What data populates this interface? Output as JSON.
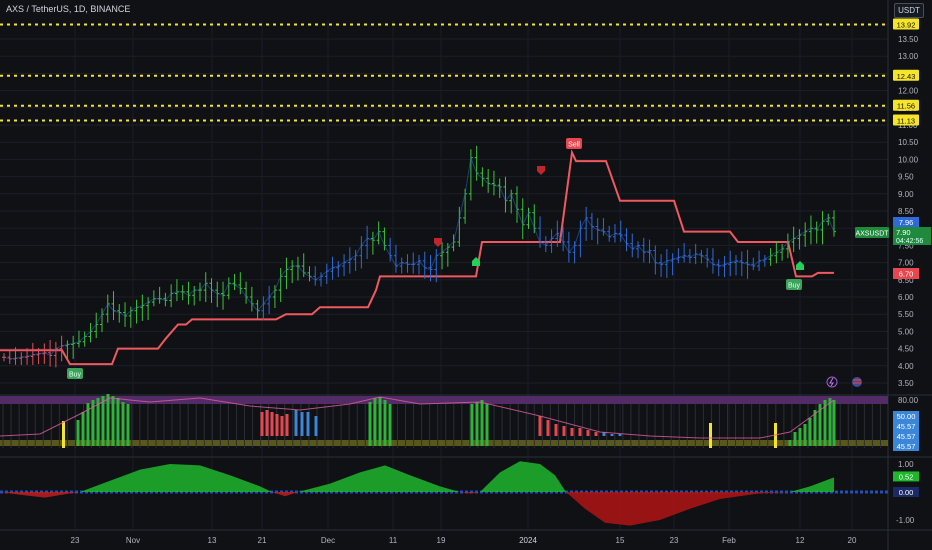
{
  "header": {
    "title": "AXS / TetherUS, 1D, BINANCE",
    "currency_button": "USDT"
  },
  "chart_data": {
    "type": "candlestick",
    "symbol": "AXSUSDT",
    "last_price": "7.90",
    "open_price": "7.96",
    "countdown": "04:42:56",
    "stop_value": "6.70",
    "price_axis": {
      "ticks": [
        "13.50",
        "13.00",
        "12.50",
        "12.00",
        "11.50",
        "11.00",
        "10.50",
        "10.00",
        "9.50",
        "9.00",
        "8.50",
        "8.00",
        "7.50",
        "7.00",
        "6.50",
        "6.00",
        "5.50",
        "5.00",
        "4.50",
        "4.00",
        "3.50"
      ],
      "ylim": [
        3.3,
        14.1
      ]
    },
    "x_axis": {
      "ticks": [
        "23",
        "Nov",
        "13",
        "21",
        "Dec",
        "11",
        "19",
        "2024",
        "15",
        "23",
        "Feb",
        "12",
        "20"
      ]
    },
    "resistance_levels": [
      "13.92",
      "12.43",
      "11.56",
      "11.13"
    ],
    "signals": {
      "buy": [
        "Buy",
        "Buy"
      ],
      "sell": [
        "Sell"
      ]
    },
    "oscillator": {
      "labels": [
        "80.00",
        "50.00",
        "45.57",
        "45.57",
        "45.57"
      ]
    },
    "momentum": {
      "ticks": [
        "1.00",
        "-1.00"
      ],
      "value": "0.52",
      "zero": "0.00",
      "ylim": [
        -1.2,
        1.2
      ]
    },
    "closes": [
      4.25,
      4.2,
      4.22,
      4.25,
      4.27,
      4.32,
      4.35,
      4.38,
      4.3,
      4.5,
      4.58,
      4.62,
      4.65,
      4.7,
      4.85,
      5.0,
      5.2,
      5.5,
      5.8,
      5.6,
      5.55,
      5.45,
      5.6,
      5.7,
      5.75,
      5.85,
      5.95,
      5.95,
      5.9,
      6.1,
      6.15,
      6.15,
      6.05,
      6.2,
      6.2,
      6.4,
      6.2,
      6.1,
      6.05,
      6.4,
      6.35,
      6.25,
      6.0,
      5.8,
      5.6,
      5.8,
      6.0,
      6.2,
      6.6,
      6.8,
      6.9,
      6.9,
      6.7,
      6.6,
      6.5,
      6.6,
      6.75,
      6.85,
      6.9,
      7.0,
      7.1,
      7.2,
      7.5,
      7.7,
      7.65,
      7.9,
      7.5,
      7.2,
      6.9,
      7.0,
      6.95,
      6.95,
      7.05,
      6.85,
      6.8,
      7.2,
      7.3,
      7.45,
      7.6,
      8.3,
      9.0,
      10.05,
      9.6,
      9.45,
      9.3,
      9.25,
      9.2,
      8.8,
      9.0,
      8.55,
      8.1,
      8.45,
      8.0,
      7.6,
      7.5,
      7.7,
      7.85,
      7.6,
      7.3,
      7.5,
      8.0,
      8.3,
      8.05,
      7.95,
      7.9,
      7.75,
      7.85,
      7.8,
      7.55,
      7.4,
      7.5,
      7.3,
      7.35,
      7.0,
      6.95,
      7.05,
      7.1,
      7.15,
      7.2,
      7.15,
      7.25,
      7.2,
      7.1,
      6.95,
      6.9,
      6.95,
      7.0,
      7.05,
      7.0,
      6.95,
      6.9,
      7.05,
      7.1,
      7.2,
      7.3,
      7.4,
      7.6,
      7.7,
      7.8,
      7.9,
      8.0,
      7.95,
      8.2,
      8.3,
      7.9
    ],
    "stop_line": [
      [
        0,
        4.45
      ],
      [
        62,
        4.45
      ],
      [
        70,
        4.05
      ],
      [
        112,
        4.05
      ],
      [
        118,
        4.5
      ],
      [
        158,
        4.5
      ],
      [
        166,
        4.8
      ],
      [
        178,
        5.2
      ],
      [
        186,
        5.2
      ],
      [
        192,
        5.35
      ],
      [
        276,
        5.35
      ],
      [
        286,
        5.5
      ],
      [
        312,
        5.5
      ],
      [
        320,
        5.7
      ],
      [
        368,
        5.7
      ],
      [
        376,
        6.2
      ],
      [
        380,
        6.6
      ],
      [
        476,
        6.6
      ],
      [
        482,
        7.6
      ],
      [
        560,
        7.6
      ],
      [
        572,
        10.2
      ],
      [
        576,
        9.95
      ],
      [
        606,
        9.95
      ],
      [
        620,
        8.8
      ],
      [
        674,
        8.8
      ],
      [
        684,
        7.9
      ],
      [
        730,
        7.9
      ],
      [
        738,
        7.6
      ],
      [
        788,
        7.6
      ],
      [
        796,
        6.6
      ],
      [
        812,
        6.6
      ],
      [
        818,
        6.7
      ],
      [
        834,
        6.7
      ]
    ]
  }
}
